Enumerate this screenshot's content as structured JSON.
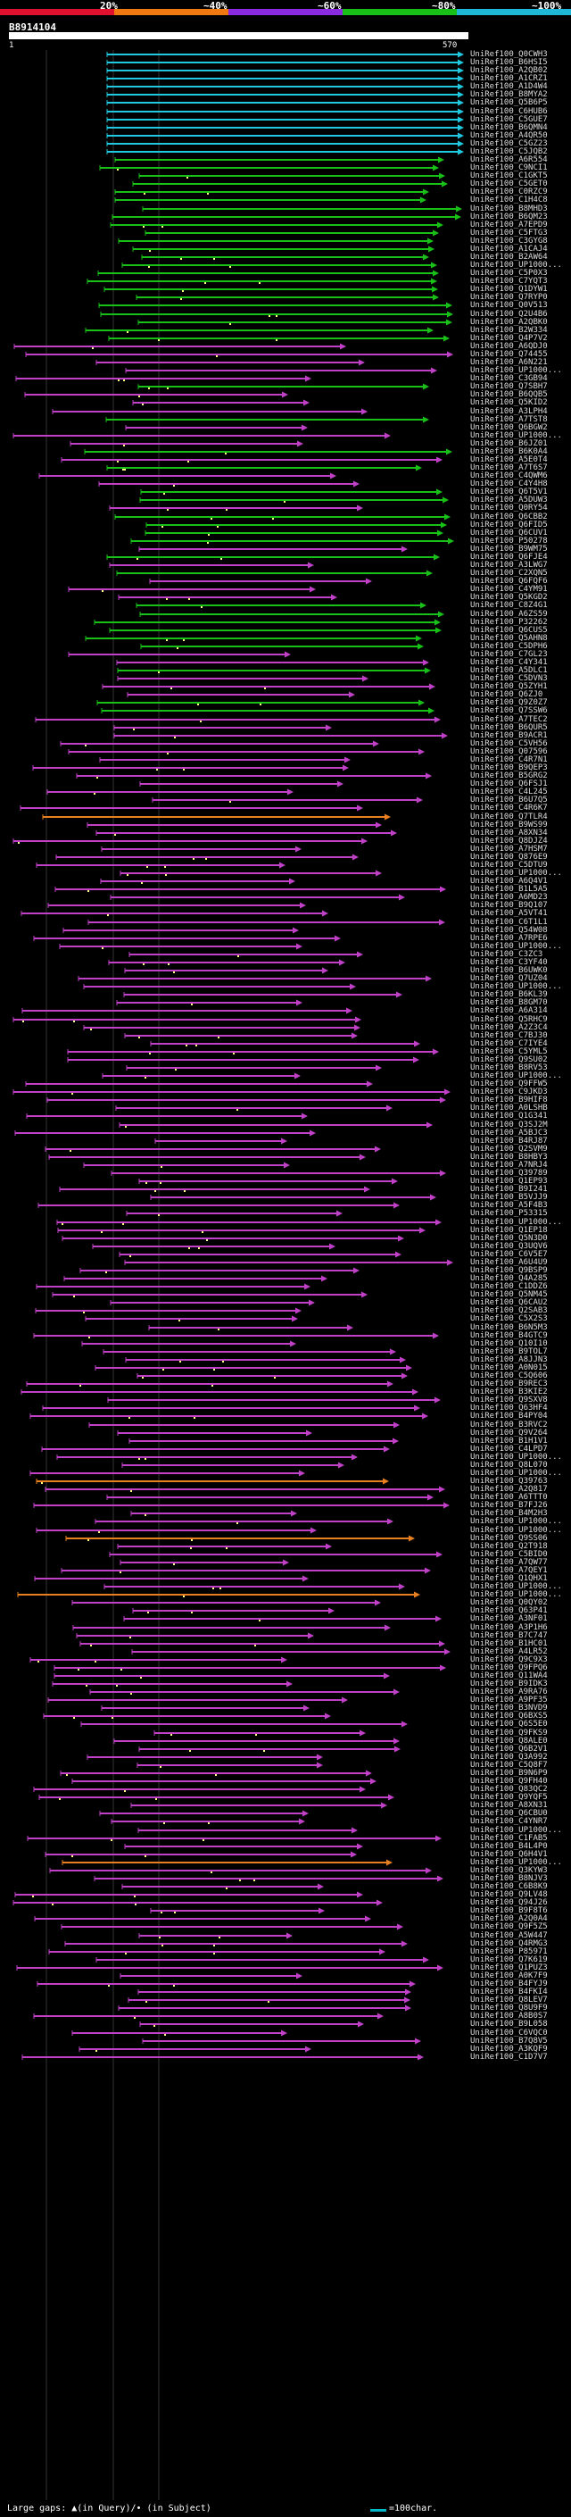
{
  "legend": {
    "stops": [
      {
        "label": "20%",
        "color": "#e0102f"
      },
      {
        "label": "~40%",
        "color": "#f07810"
      },
      {
        "label": "~60%",
        "color": "#8a2be2"
      },
      {
        "label": "~80%",
        "color": "#18c018"
      },
      {
        "label": "~100%",
        "color": "#20b8d8"
      }
    ]
  },
  "query": {
    "id": "B8914104",
    "start": "1",
    "end": "570"
  },
  "hits": [
    {
      "id": "UniRef100_Q0CWH3",
      "class": "cyan"
    },
    {
      "id": "UniRef100_B6HSI5",
      "class": "cyan"
    },
    {
      "id": "UniRef100_A2QB02",
      "class": "cyan"
    },
    {
      "id": "UniRef100_A1CRZ1",
      "class": "cyan"
    },
    {
      "id": "UniRef100_A1D4W4",
      "class": "cyan"
    },
    {
      "id": "UniRef100_B8MYA2",
      "class": "cyan"
    },
    {
      "id": "UniRef100_Q5B6P5",
      "class": "cyan"
    },
    {
      "id": "UniRef100_C6HUB6",
      "class": "cyan"
    },
    {
      "id": "UniRef100_C5GUE7",
      "class": "cyan"
    },
    {
      "id": "UniRef100_B6QMN4",
      "class": "cyan"
    },
    {
      "id": "UniRef100_A4QR50",
      "class": "cyan"
    },
    {
      "id": "UniRef100_C5GZ23",
      "class": "cyan"
    },
    {
      "id": "UniRef100_C5JQB2",
      "class": "cyan"
    },
    {
      "id": "UniRef100_A6R554",
      "class": "green"
    },
    {
      "id": "UniRef100_C9NCI1",
      "class": "green"
    },
    {
      "id": "UniRef100_C1GKT5",
      "class": "green"
    },
    {
      "id": "UniRef100_C5GET0",
      "class": "green"
    },
    {
      "id": "UniRef100_C0RZC9",
      "class": "green"
    },
    {
      "id": "UniRef100_C1H4C8",
      "class": "green"
    },
    {
      "id": "UniRef100_B8MHD3",
      "class": "green"
    },
    {
      "id": "UniRef100_B6QM23",
      "class": "green"
    },
    {
      "id": "UniRef100_A7EPD9",
      "class": "green"
    },
    {
      "id": "UniRef100_C5FTG3",
      "class": "green"
    },
    {
      "id": "UniRef100_C3GYG8",
      "class": "green"
    },
    {
      "id": "UniRef100_A1CAJ4",
      "class": "green"
    },
    {
      "id": "UniRef100_B2AW64",
      "class": "green"
    },
    {
      "id": "UniRef100_UP1000...",
      "class": "green"
    },
    {
      "id": "UniRef100_C5P0X3",
      "class": "green"
    },
    {
      "id": "UniRef100_C7YQT3",
      "class": "green"
    },
    {
      "id": "UniRef100_Q1DYW1",
      "class": "green"
    },
    {
      "id": "UniRef100_Q7RYP0",
      "class": "green"
    },
    {
      "id": "UniRef100_Q0V513",
      "class": "green"
    },
    {
      "id": "UniRef100_Q2U4B6",
      "class": "green"
    },
    {
      "id": "UniRef100_A2QBK0",
      "class": "green"
    },
    {
      "id": "UniRef100_B2W334",
      "class": "green"
    },
    {
      "id": "UniRef100_Q4P7V2",
      "class": "green"
    },
    {
      "id": "UniRef100_A6QDJ0",
      "class": "magenta"
    },
    {
      "id": "UniRef100_Q74455",
      "class": "magenta"
    },
    {
      "id": "UniRef100_A6N221",
      "class": "magenta"
    },
    {
      "id": "UniRef100_UP1000...",
      "class": "magenta"
    },
    {
      "id": "UniRef100_C3GB94",
      "class": "magenta"
    },
    {
      "id": "UniRef100_Q7SBH7",
      "class": "green"
    },
    {
      "id": "UniRef100_B6QQB5",
      "class": "magenta"
    },
    {
      "id": "UniRef100_Q5KID2",
      "class": "magenta"
    },
    {
      "id": "UniRef100_A3LPH4",
      "class": "magenta"
    },
    {
      "id": "UniRef100_A7TST8",
      "class": "green"
    },
    {
      "id": "UniRef100_Q6BGW2",
      "class": "magenta"
    },
    {
      "id": "UniRef100_UP1000...",
      "class": "magenta"
    },
    {
      "id": "UniRef100_B6JZ01",
      "class": "magenta"
    },
    {
      "id": "UniRef100_B6K0A4",
      "class": "green"
    },
    {
      "id": "UniRef100_A5E0T4",
      "class": "magenta"
    },
    {
      "id": "UniRef100_A7T6S7",
      "class": "green"
    },
    {
      "id": "UniRef100_C4QWM6",
      "class": "magenta"
    },
    {
      "id": "UniRef100_C4Y4H8",
      "class": "magenta"
    },
    {
      "id": "UniRef100_Q6T5V1",
      "class": "green"
    },
    {
      "id": "UniRef100_A5DUW3",
      "class": "green"
    },
    {
      "id": "UniRef100_Q0RY54",
      "class": "magenta"
    },
    {
      "id": "UniRef100_Q6CBB2",
      "class": "green"
    },
    {
      "id": "UniRef100_Q6FID5",
      "class": "green"
    },
    {
      "id": "UniRef100_Q6CUV1",
      "class": "green"
    },
    {
      "id": "UniRef100_P50278",
      "class": "green"
    },
    {
      "id": "UniRef100_B9WM75",
      "class": "magenta"
    },
    {
      "id": "UniRef100_Q6FJE4",
      "class": "green"
    },
    {
      "id": "UniRef100_A3LWG7",
      "class": "magenta"
    },
    {
      "id": "UniRef100_C2XQN5",
      "class": "green"
    },
    {
      "id": "UniRef100_Q6FQF6",
      "class": "magenta"
    },
    {
      "id": "UniRef100_C4YM91",
      "class": "magenta"
    },
    {
      "id": "UniRef100_Q5KGD2",
      "class": "magenta"
    },
    {
      "id": "UniRef100_C8Z4G1",
      "class": "green"
    },
    {
      "id": "UniRef100_A6ZS59",
      "class": "green"
    },
    {
      "id": "UniRef100_P32262",
      "class": "green"
    },
    {
      "id": "UniRef100_Q6CUS5",
      "class": "green"
    },
    {
      "id": "UniRef100_Q5AHN8",
      "class": "green"
    },
    {
      "id": "UniRef100_C5DPH6",
      "class": "green"
    },
    {
      "id": "UniRef100_C7GL23",
      "class": "magenta"
    },
    {
      "id": "UniRef100_C4Y341",
      "class": "magenta"
    },
    {
      "id": "UniRef100_A5DLC1",
      "class": "green"
    },
    {
      "id": "UniRef100_C5DVN3",
      "class": "magenta"
    },
    {
      "id": "UniRef100_Q5ZYH1",
      "class": "magenta"
    },
    {
      "id": "UniRef100_Q6ZJ0",
      "class": "magenta"
    },
    {
      "id": "UniRef100_Q9Z0Z7",
      "class": "green"
    },
    {
      "id": "UniRef100_Q7SSW6",
      "class": "green"
    },
    {
      "id": "UniRef100_A7TEC2",
      "class": "magenta"
    },
    {
      "id": "UniRef100_B6QUR5",
      "class": "magenta"
    },
    {
      "id": "UniRef100_B9ACR1",
      "class": "magenta"
    },
    {
      "id": "UniRef100_C5VH56",
      "class": "magenta"
    },
    {
      "id": "UniRef100_Q07596",
      "class": "magenta"
    },
    {
      "id": "UniRef100_C4R7N1",
      "class": "magenta"
    },
    {
      "id": "UniRef100_B9QEP3",
      "class": "magenta"
    },
    {
      "id": "UniRef100_B5GRG2",
      "class": "magenta"
    },
    {
      "id": "UniRef100_Q6FSJ1",
      "class": "magenta"
    },
    {
      "id": "UniRef100_C4L245",
      "class": "magenta"
    },
    {
      "id": "UniRef100_B6U7Q5",
      "class": "magenta"
    },
    {
      "id": "UniRef100_C4R6K7",
      "class": "magenta"
    },
    {
      "id": "UniRef100_Q7TLR4",
      "class": "orange"
    },
    {
      "id": "UniRef100_B9WS99",
      "class": "magenta"
    },
    {
      "id": "UniRef100_A8XN34",
      "class": "magenta"
    },
    {
      "id": "UniRef100_Q8DJZ4",
      "class": "magenta"
    },
    {
      "id": "UniRef100_A7HSM7",
      "class": "magenta"
    },
    {
      "id": "UniRef100_Q876E9",
      "class": "magenta"
    },
    {
      "id": "UniRef100_C5DTU9",
      "class": "magenta"
    },
    {
      "id": "UniRef100_UP1000...",
      "class": "magenta"
    },
    {
      "id": "UniRef100_A6Q4V1",
      "class": "magenta"
    },
    {
      "id": "UniRef100_B1L5A5",
      "class": "magenta"
    },
    {
      "id": "UniRef100_A6MD23",
      "class": "magenta"
    },
    {
      "id": "UniRef100_B9Q107",
      "class": "magenta"
    },
    {
      "id": "UniRef100_A5VT41",
      "class": "magenta"
    },
    {
      "id": "UniRef100_C6T1L1",
      "class": "magenta"
    },
    {
      "id": "UniRef100_Q54W08",
      "class": "magenta"
    },
    {
      "id": "UniRef100_A7RPE6",
      "class": "magenta"
    },
    {
      "id": "UniRef100_UP1000...",
      "class": "magenta"
    },
    {
      "id": "UniRef100_C3ZC3",
      "class": "magenta"
    },
    {
      "id": "UniRef100_C3YF40",
      "class": "magenta"
    },
    {
      "id": "UniRef100_B6UWK0",
      "class": "magenta"
    },
    {
      "id": "UniRef100_Q7UZ04",
      "class": "magenta"
    },
    {
      "id": "UniRef100_UP1000...",
      "class": "magenta"
    },
    {
      "id": "UniRef100_B6KL39",
      "class": "magenta"
    },
    {
      "id": "UniRef100_B8GM70",
      "class": "magenta"
    },
    {
      "id": "UniRef100_A6A314",
      "class": "magenta"
    },
    {
      "id": "UniRef100_Q5RHC9",
      "class": "magenta"
    },
    {
      "id": "UniRef100_A2Z3C4",
      "class": "magenta"
    },
    {
      "id": "UniRef100_C7BJ30",
      "class": "magenta"
    },
    {
      "id": "UniRef100_C7IYE4",
      "class": "magenta"
    },
    {
      "id": "UniRef100_C5YML5",
      "class": "magenta"
    },
    {
      "id": "UniRef100_Q9SU02",
      "class": "magenta"
    },
    {
      "id": "UniRef100_B8RV53",
      "class": "magenta"
    },
    {
      "id": "UniRef100_UP1000...",
      "class": "magenta"
    },
    {
      "id": "UniRef100_Q9FFW5",
      "class": "magenta"
    },
    {
      "id": "UniRef100_C9JKD3",
      "class": "magenta"
    },
    {
      "id": "UniRef100_B9HIF8",
      "class": "magenta"
    },
    {
      "id": "UniRef100_A0LSHB",
      "class": "magenta"
    },
    {
      "id": "UniRef100_Q1G341",
      "class": "magenta"
    },
    {
      "id": "UniRef100_Q3SJ2M",
      "class": "magenta"
    },
    {
      "id": "UniRef100_A5BJC3",
      "class": "magenta"
    },
    {
      "id": "UniRef100_B4RJ87",
      "class": "magenta"
    },
    {
      "id": "UniRef100_Q2SVM9",
      "class": "magenta"
    },
    {
      "id": "UniRef100_B8HBY3",
      "class": "magenta"
    },
    {
      "id": "UniRef100_A7NRJ4",
      "class": "magenta"
    },
    {
      "id": "UniRef100_Q39789",
      "class": "magenta"
    },
    {
      "id": "UniRef100_Q1EP93",
      "class": "magenta"
    },
    {
      "id": "UniRef100_B9I241",
      "class": "magenta"
    },
    {
      "id": "UniRef100_B5VJJ9",
      "class": "magenta"
    },
    {
      "id": "UniRef100_A5F4B3",
      "class": "magenta"
    },
    {
      "id": "UniRef100_P53315",
      "class": "magenta"
    },
    {
      "id": "UniRef100_UP1000...",
      "class": "magenta"
    },
    {
      "id": "UniRef100_Q1EP18",
      "class": "magenta"
    },
    {
      "id": "UniRef100_Q5N3D0",
      "class": "magenta"
    },
    {
      "id": "UniRef100_Q3UQV6",
      "class": "magenta"
    },
    {
      "id": "UniRef100_C6V5E7",
      "class": "magenta"
    },
    {
      "id": "UniRef100_A6U4U9",
      "class": "magenta"
    },
    {
      "id": "UniRef100_Q9BSP9",
      "class": "magenta"
    },
    {
      "id": "UniRef100_Q4A285",
      "class": "magenta"
    },
    {
      "id": "UniRef100_C1DDZ6",
      "class": "magenta"
    },
    {
      "id": "UniRef100_Q5NM45",
      "class": "magenta"
    },
    {
      "id": "UniRef100_Q6CAU2",
      "class": "magenta"
    },
    {
      "id": "UniRef100_Q2SAB3",
      "class": "magenta"
    },
    {
      "id": "UniRef100_C5X2S3",
      "class": "magenta"
    },
    {
      "id": "UniRef100_B6N5M3",
      "class": "magenta"
    },
    {
      "id": "UniRef100_B4GTC9",
      "class": "magenta"
    },
    {
      "id": "UniRef100_Q10I10",
      "class": "magenta"
    },
    {
      "id": "UniRef100_B9TOL7",
      "class": "magenta"
    },
    {
      "id": "UniRef100_A8JJN3",
      "class": "magenta"
    },
    {
      "id": "UniRef100_A0N015",
      "class": "magenta"
    },
    {
      "id": "UniRef100_C5Q606",
      "class": "magenta"
    },
    {
      "id": "UniRef100_B9REC3",
      "class": "magenta"
    },
    {
      "id": "UniRef100_B3KIE2",
      "class": "magenta"
    },
    {
      "id": "UniRef100_Q9SXV8",
      "class": "magenta"
    },
    {
      "id": "UniRef100_Q63HF4",
      "class": "magenta"
    },
    {
      "id": "UniRef100_B4PY04",
      "class": "magenta"
    },
    {
      "id": "UniRef100_B3RVC2",
      "class": "magenta"
    },
    {
      "id": "UniRef100_Q9V264",
      "class": "magenta"
    },
    {
      "id": "UniRef100_B1H1V1",
      "class": "magenta"
    },
    {
      "id": "UniRef100_C4LPD7",
      "class": "magenta"
    },
    {
      "id": "UniRef100_UP1000...",
      "class": "magenta"
    },
    {
      "id": "UniRef100_Q8L070",
      "class": "magenta"
    },
    {
      "id": "UniRef100_UP1000...",
      "class": "magenta"
    },
    {
      "id": "UniRef100_Q39763",
      "class": "orange"
    },
    {
      "id": "UniRef100_A2Q817",
      "class": "magenta"
    },
    {
      "id": "UniRef100_A6TTT0",
      "class": "magenta"
    },
    {
      "id": "UniRef100_B7FJ26",
      "class": "magenta"
    },
    {
      "id": "UniRef100_B4M2H3",
      "class": "magenta"
    },
    {
      "id": "UniRef100_UP1000...",
      "class": "magenta"
    },
    {
      "id": "UniRef100_UP1000...",
      "class": "magenta"
    },
    {
      "id": "UniRef100_Q9SS06",
      "class": "orange"
    },
    {
      "id": "UniRef100_Q2T918",
      "class": "magenta"
    },
    {
      "id": "UniRef100_C5BID0",
      "class": "magenta"
    },
    {
      "id": "UniRef100_A7QW77",
      "class": "magenta"
    },
    {
      "id": "UniRef100_A7QEY1",
      "class": "magenta"
    },
    {
      "id": "UniRef100_Q1QHX1",
      "class": "magenta"
    },
    {
      "id": "UniRef100_UP1000...",
      "class": "magenta"
    },
    {
      "id": "UniRef100_UP1000...",
      "class": "orange"
    },
    {
      "id": "UniRef100_Q0QY02",
      "class": "magenta"
    },
    {
      "id": "UniRef100_Q63P41",
      "class": "magenta"
    },
    {
      "id": "UniRef100_A3NF01",
      "class": "magenta"
    },
    {
      "id": "UniRef100_A3P1H6",
      "class": "magenta"
    },
    {
      "id": "UniRef100_B7C747",
      "class": "magenta"
    },
    {
      "id": "UniRef100_B1HC01",
      "class": "magenta"
    },
    {
      "id": "UniRef100_A4LR52",
      "class": "magenta"
    },
    {
      "id": "UniRef100_Q9C9X3",
      "class": "magenta"
    },
    {
      "id": "UniRef100_Q9FPQ6",
      "class": "magenta"
    },
    {
      "id": "UniRef100_Q11WA4",
      "class": "magenta"
    },
    {
      "id": "UniRef100_B9IDK3",
      "class": "magenta"
    },
    {
      "id": "UniRef100_A9RA76",
      "class": "magenta"
    },
    {
      "id": "UniRef100_A9PF35",
      "class": "magenta"
    },
    {
      "id": "UniRef100_B3NVD9",
      "class": "magenta"
    },
    {
      "id": "UniRef100_Q6BXS5",
      "class": "magenta"
    },
    {
      "id": "UniRef100_Q6S5E0",
      "class": "magenta"
    },
    {
      "id": "UniRef100_Q9FKS9",
      "class": "magenta"
    },
    {
      "id": "UniRef100_Q8ALE0",
      "class": "magenta"
    },
    {
      "id": "UniRef100_Q6B2V1",
      "class": "magenta"
    },
    {
      "id": "UniRef100_Q3A992",
      "class": "magenta"
    },
    {
      "id": "UniRef100_C5Q8F7",
      "class": "magenta"
    },
    {
      "id": "UniRef100_B9N6P9",
      "class": "magenta"
    },
    {
      "id": "UniRef100_Q9FH40",
      "class": "magenta"
    },
    {
      "id": "UniRef100_Q83QC2",
      "class": "magenta"
    },
    {
      "id": "UniRef100_Q9YQF5",
      "class": "magenta"
    },
    {
      "id": "UniRef100_A8XN31",
      "class": "magenta"
    },
    {
      "id": "UniRef100_Q6CBU0",
      "class": "magenta"
    },
    {
      "id": "UniRef100_C4YNR7",
      "class": "magenta"
    },
    {
      "id": "UniRef100_UP1000...",
      "class": "magenta"
    },
    {
      "id": "UniRef100_C1FAB5",
      "class": "magenta"
    },
    {
      "id": "UniRef100_B4L4P0",
      "class": "magenta"
    },
    {
      "id": "UniRef100_Q6H4V1",
      "class": "magenta"
    },
    {
      "id": "UniRef100_UP1000...",
      "class": "orange"
    },
    {
      "id": "UniRef100_Q3KYW3",
      "class": "magenta"
    },
    {
      "id": "UniRef100_B8NJV3",
      "class": "magenta"
    },
    {
      "id": "UniRef100_C6B8K9",
      "class": "magenta"
    },
    {
      "id": "UniRef100_Q9LV48",
      "class": "magenta"
    },
    {
      "id": "UniRef100_Q94J26",
      "class": "magenta"
    },
    {
      "id": "UniRef100_B9F8T6",
      "class": "magenta"
    },
    {
      "id": "UniRef100_A2Q0A4",
      "class": "magenta"
    },
    {
      "id": "UniRef100_Q9F5Z5",
      "class": "magenta"
    },
    {
      "id": "UniRef100_A5W447",
      "class": "magenta"
    },
    {
      "id": "UniRef100_Q4RMG3",
      "class": "magenta"
    },
    {
      "id": "UniRef100_P85971",
      "class": "magenta"
    },
    {
      "id": "UniRef100_Q7K619",
      "class": "magenta"
    },
    {
      "id": "UniRef100_Q1PUZ3",
      "class": "magenta"
    },
    {
      "id": "UniRef100_A0K7F9",
      "class": "magenta"
    },
    {
      "id": "UniRef100_B4FYJ9",
      "class": "magenta"
    },
    {
      "id": "UniRef100_B4FKI4",
      "class": "magenta"
    },
    {
      "id": "UniRef100_Q8LEV7",
      "class": "magenta"
    },
    {
      "id": "UniRef100_Q8U9F9",
      "class": "magenta"
    },
    {
      "id": "UniRef100_A8B0S7",
      "class": "magenta"
    },
    {
      "id": "UniRef100_B9L058",
      "class": "magenta"
    },
    {
      "id": "UniRef100_C6VQC0",
      "class": "magenta"
    },
    {
      "id": "UniRef100_B7Q8V5",
      "class": "magenta"
    },
    {
      "id": "UniRef100_A3KQF9",
      "class": "magenta"
    },
    {
      "id": "UniRef100_C1D7V7",
      "class": "magenta"
    }
  ],
  "colors": {
    "cyan": "#20c8e0",
    "green": "#18c018",
    "magenta": "#c040c8",
    "orange": "#e88020",
    "gap": "#ffff80"
  },
  "footer": {
    "gaps_text": "Large gaps: ▲(in Query)/• (in Subject)",
    "scale_text": "=100char."
  }
}
